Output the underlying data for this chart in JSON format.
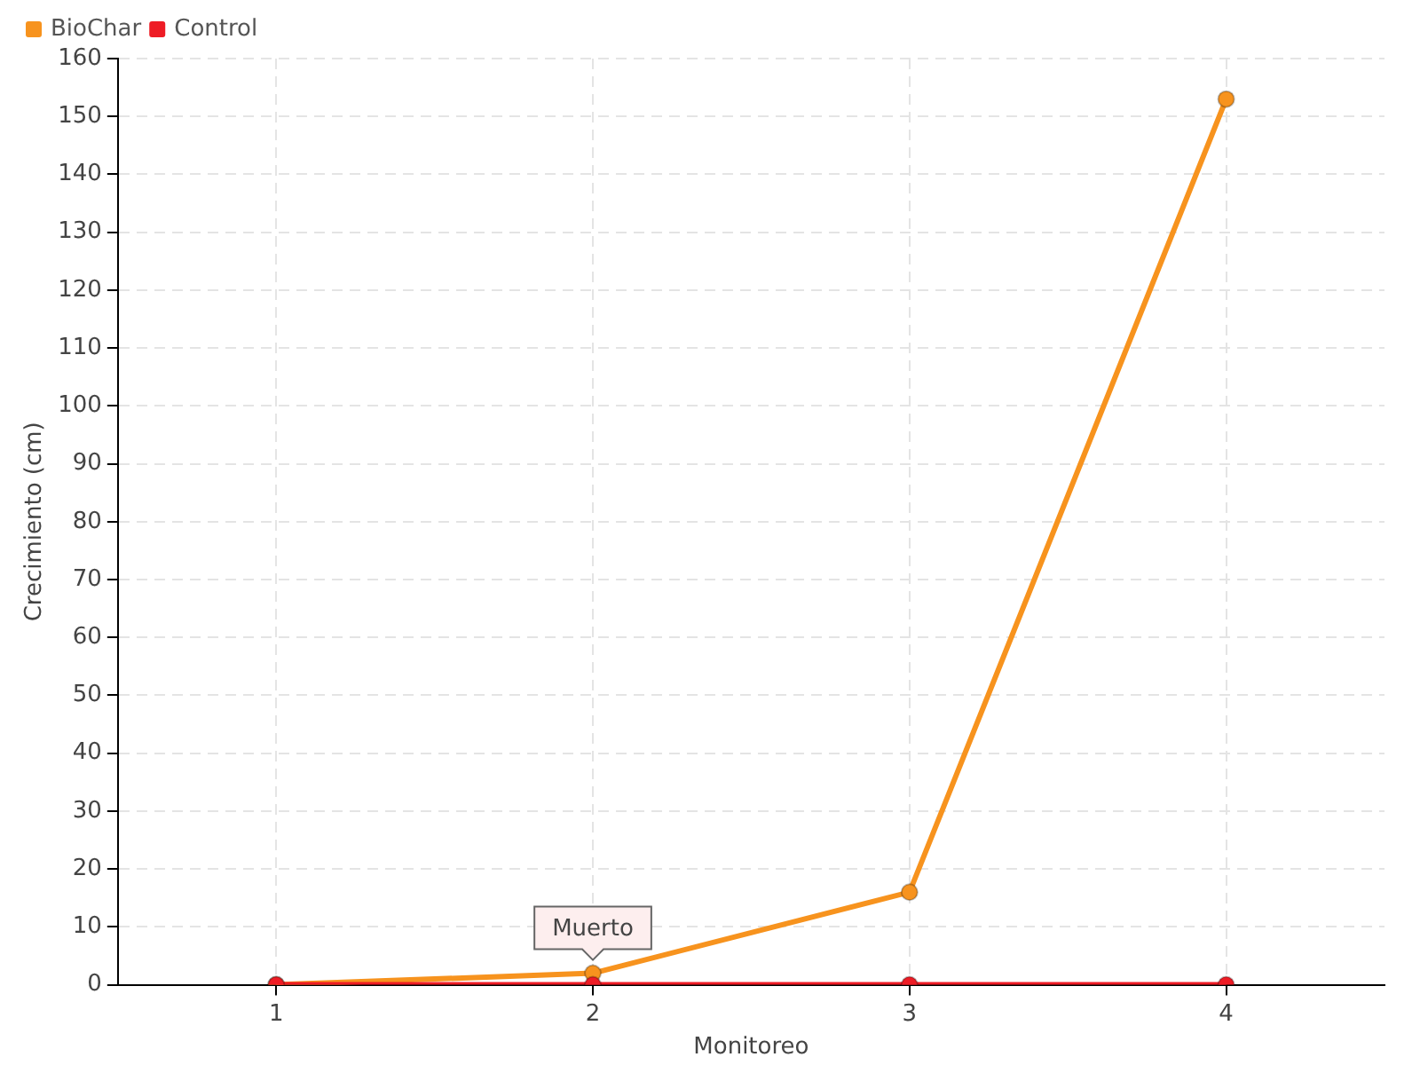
{
  "chart_data": {
    "type": "line",
    "xlabel": "Monitoreo",
    "ylabel": "Crecimiento (cm)",
    "x": [
      1,
      2,
      3,
      4
    ],
    "xlim": [
      0.5,
      4.5
    ],
    "xticks": [
      1,
      2,
      3,
      4
    ],
    "ylim": [
      0,
      160
    ],
    "yticks": [
      0,
      10,
      20,
      30,
      40,
      50,
      60,
      70,
      80,
      90,
      100,
      110,
      120,
      130,
      140,
      150,
      160
    ],
    "series": [
      {
        "name": "BioChar",
        "color": "#f7931e",
        "values": [
          0,
          2,
          16,
          153
        ]
      },
      {
        "name": "Control",
        "color": "#ee1c25",
        "values": [
          0,
          0,
          0,
          0
        ]
      }
    ],
    "annotations": [
      {
        "text": "Muerto",
        "x": 2,
        "y": 0
      }
    ],
    "grid": true,
    "legend": "top left",
    "marker": "circle",
    "line_style": "solid"
  }
}
